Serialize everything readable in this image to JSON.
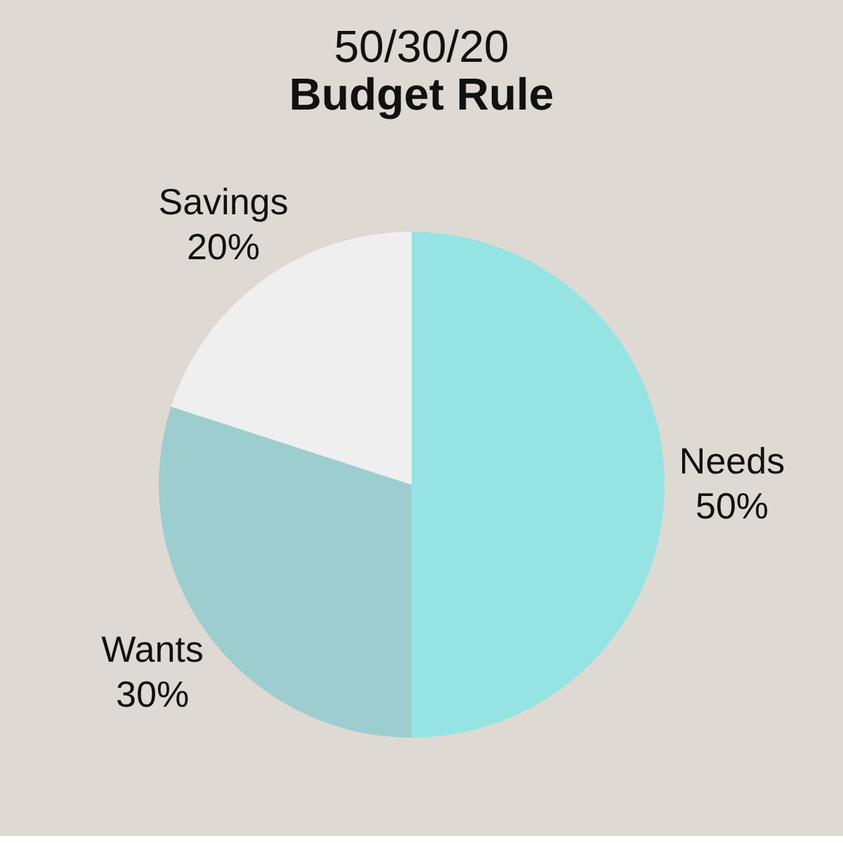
{
  "chart_data": {
    "type": "pie",
    "title": "50/30/20",
    "subtitle": "Budget Rule",
    "categories": [
      "Needs",
      "Wants",
      "Savings"
    ],
    "values": [
      50,
      30,
      20
    ],
    "colors": [
      "#96e3e4",
      "#9dcdce",
      "#efefef"
    ],
    "value_labels": [
      "50%",
      "30%",
      "20%"
    ],
    "legend": false
  }
}
